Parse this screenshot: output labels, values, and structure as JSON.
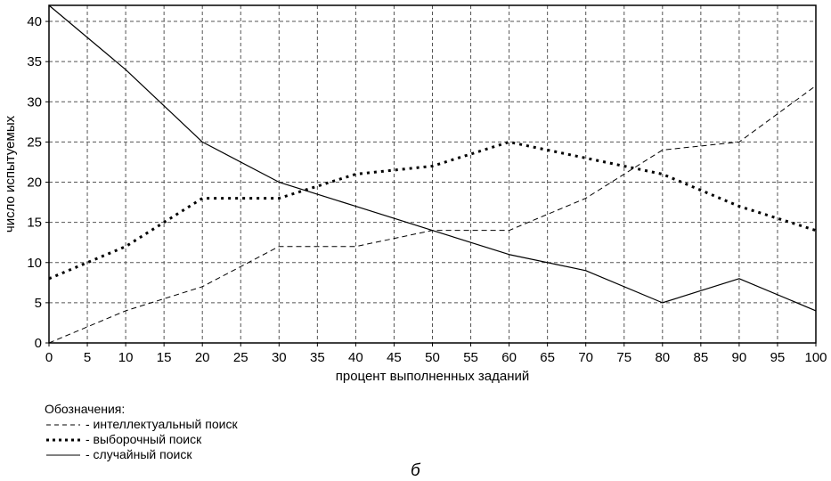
{
  "chart_data": {
    "type": "line",
    "x": [
      0,
      10,
      20,
      30,
      40,
      50,
      60,
      70,
      80,
      90,
      100
    ],
    "xlim": [
      0,
      100
    ],
    "ylim": [
      0,
      42
    ],
    "xticks": [
      0,
      5,
      10,
      15,
      20,
      25,
      30,
      35,
      40,
      45,
      50,
      55,
      60,
      65,
      70,
      75,
      80,
      85,
      90,
      95,
      100
    ],
    "yticks": [
      0,
      5,
      10,
      15,
      20,
      25,
      30,
      35,
      40
    ],
    "xlabel": "процент выполненных заданий",
    "ylabel": "число испытуемых",
    "grid": true,
    "series": [
      {
        "name": "интеллектуальный поиск",
        "style": "dashed",
        "values": [
          0,
          4,
          7,
          12,
          12,
          14,
          14,
          18,
          24,
          25,
          32
        ]
      },
      {
        "name": "выборочный поиск",
        "style": "dotted",
        "values": [
          8,
          12,
          18,
          18,
          21,
          22,
          25,
          23,
          21,
          17,
          14
        ]
      },
      {
        "name": "случайный поиск",
        "style": "solid",
        "values": [
          42,
          34,
          25,
          20,
          17,
          14,
          11,
          9,
          5,
          8,
          4
        ]
      }
    ]
  },
  "legend": {
    "title": "Обозначения:",
    "items": [
      {
        "label": "- интеллектуальный поиск"
      },
      {
        "label": "- выборочный поиск"
      },
      {
        "label": "- случайный поиск"
      }
    ]
  },
  "panel_letter": "б"
}
